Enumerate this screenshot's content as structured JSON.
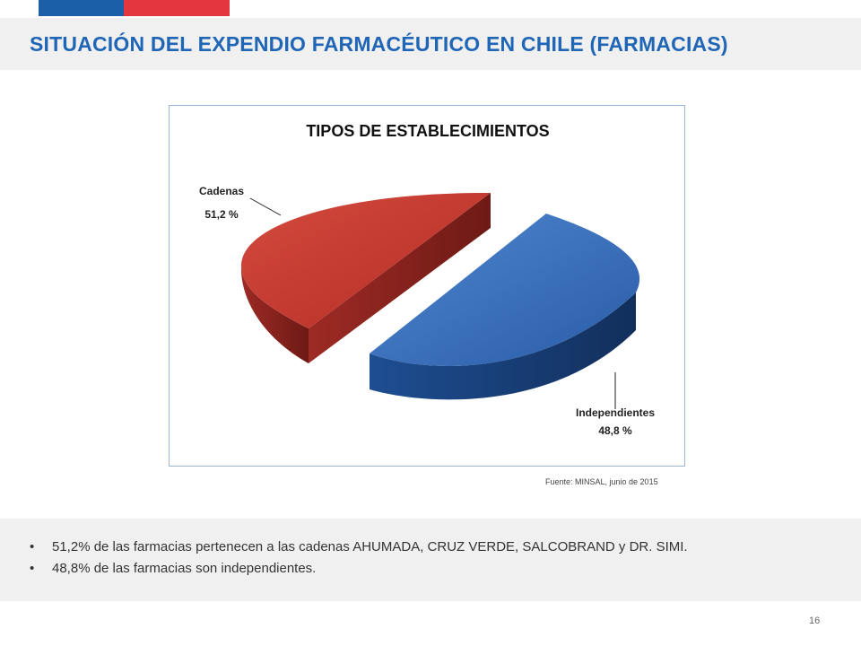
{
  "slide": {
    "title": "SITUACIÓN DEL EXPENDIO FARMACÉUTICO EN CHILE (FARMACIAS)",
    "page_number": "16",
    "flag_colors": [
      "#1b5fa8",
      "#e3373f"
    ]
  },
  "chart_data": {
    "type": "pie",
    "style": "3d-exploded",
    "title": "TIPOS DE ESTABLECIMIENTOS",
    "slices": [
      {
        "label": "Cadenas",
        "value": 51.2,
        "value_label": "51,2 %",
        "color": "#c0392f"
      },
      {
        "label": "Independientes",
        "value": 48.8,
        "value_label": "48,8 %",
        "color": "#2c63ad"
      }
    ],
    "legend": "none"
  },
  "source_note": "Fuente: MINSAL, junio de 2015",
  "notes": [
    "51,2% de las farmacias pertenecen a las cadenas AHUMADA, CRUZ VERDE, SALCOBRAND y DR. SIMI.",
    "48,8% de las farmacias son independientes."
  ]
}
